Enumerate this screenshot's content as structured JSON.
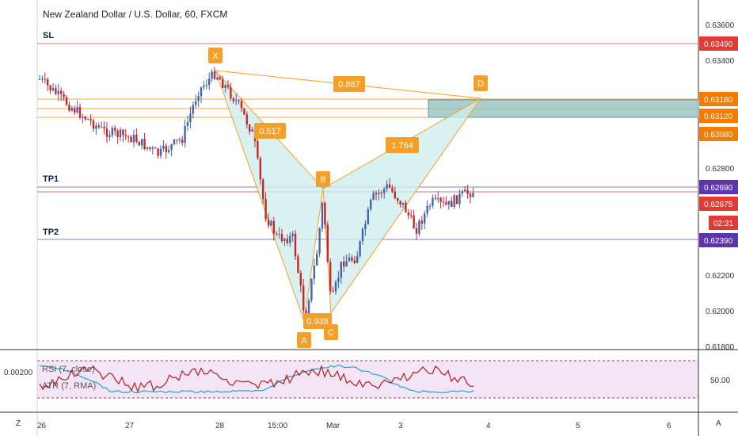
{
  "header": {
    "title": "New Zealand Dollar / U.S. Dollar, 60, FXCM"
  },
  "lines": {
    "sl": {
      "label": "SL",
      "price": 0.6349,
      "color": "#e53935"
    },
    "tp1": {
      "label": "TP1",
      "price": 0.6269,
      "color": "#5c6bc0"
    },
    "tp2": {
      "label": "TP2",
      "price": 0.6239,
      "color": "#5c6bc0"
    }
  },
  "price_axis": {
    "ticks": [
      "0.63600",
      "0.63400",
      "0.62800",
      "0.62200",
      "0.62000",
      "0.61800"
    ],
    "tags": [
      {
        "text": "0.63490",
        "color": "#e53935"
      },
      {
        "text": "0.63180",
        "color": "#f57c00"
      },
      {
        "text": "0.63120",
        "color": "#f57c00"
      },
      {
        "text": "0.63080",
        "color": "#f57c00"
      },
      {
        "text": "0.62690",
        "color": "#5e35b1"
      },
      {
        "text": "0.62675",
        "color": "#e53935"
      },
      {
        "text": "02:31",
        "color": "#e53935"
      },
      {
        "text": "0.62390",
        "color": "#5e35b1"
      }
    ]
  },
  "time_axis": {
    "ticks": [
      "26",
      "27",
      "28",
      "15:00",
      "Mar",
      "3",
      "4",
      "5",
      "6"
    ]
  },
  "pattern": {
    "points": [
      "X",
      "A",
      "B",
      "C",
      "D"
    ],
    "ratios": [
      "0.887",
      "0.517",
      "1.764",
      "0.938"
    ]
  },
  "indicator": {
    "rsi_label": "RSI (7, close)",
    "atr_label": "ATR (7, RMA)",
    "left_value": "0.00200",
    "right_value": "50.00"
  },
  "corner": {
    "left": "Z",
    "right": "A"
  },
  "colors": {
    "up": "#26a69a",
    "down": "#ef5350",
    "candle_up": "#3f64b0",
    "candle_down": "#c62828",
    "pattern_fill": "#cfeeee",
    "pattern_line": "#f59f27",
    "zone_fill": "#8fbfbc",
    "rsi_line": "#b71c1c",
    "atr_line": "#29a0c8"
  }
}
